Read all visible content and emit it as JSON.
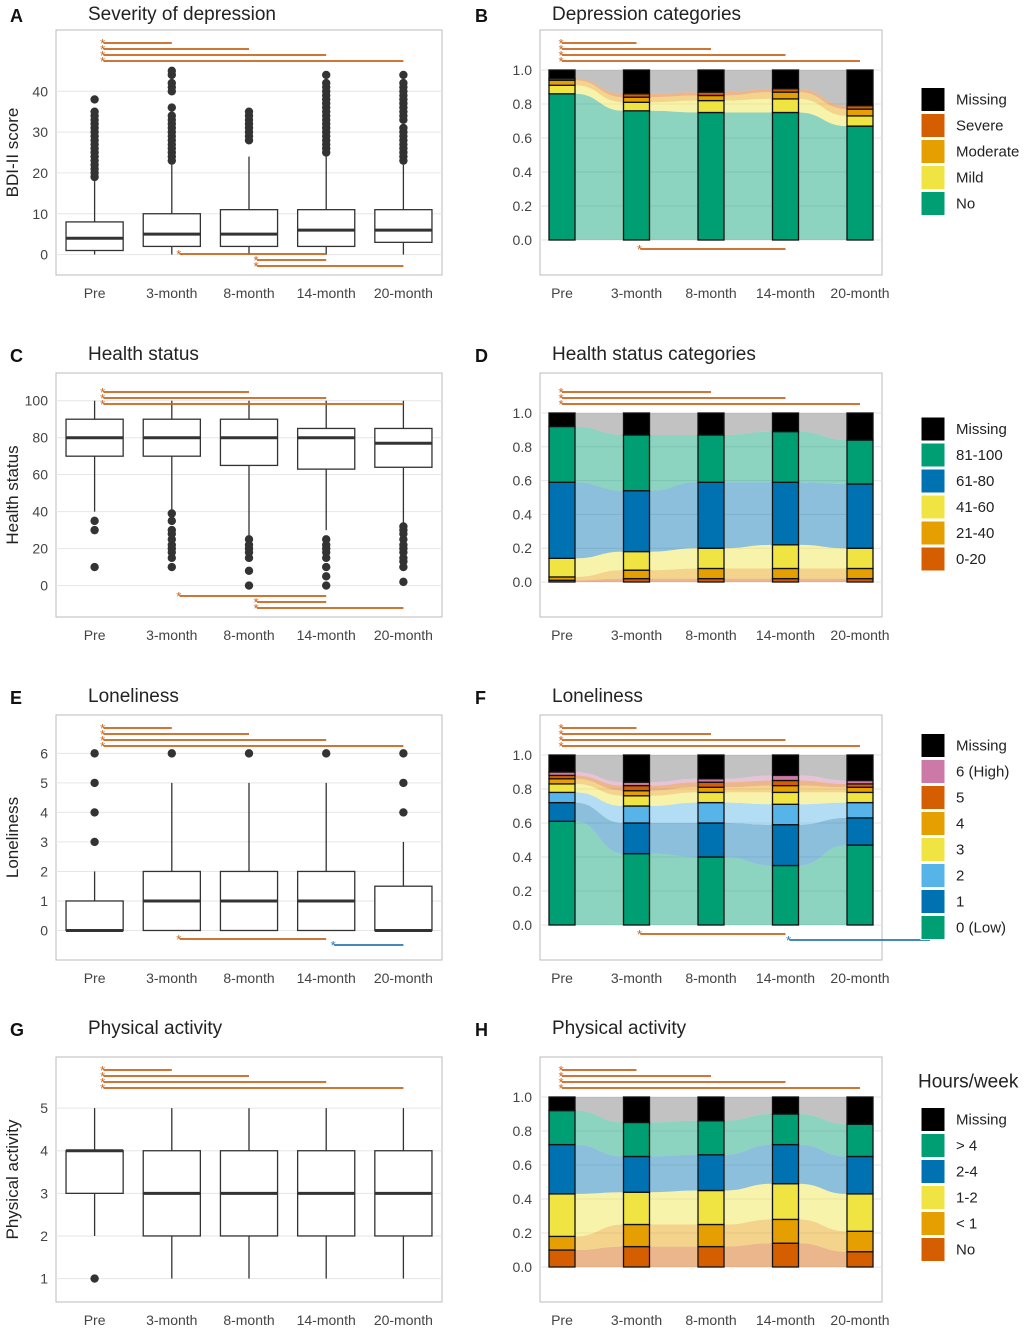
{
  "colors": {
    "sig_orange": "#c8621a",
    "sig_blue": "#2a78b6",
    "missing": "#000000",
    "grid": "#e6e6e6",
    "frame": "#bbbbbb"
  },
  "chart_data": [
    {
      "id": "A",
      "type": "box",
      "letter": "A",
      "title": "Severity of depression",
      "ylabel": "BDI-II score",
      "categories": [
        "Pre",
        "3-month",
        "8-month",
        "14-month",
        "20-month"
      ],
      "ylim": [
        -5,
        55
      ],
      "yticks": [
        0,
        10,
        20,
        30,
        40
      ],
      "boxes": [
        {
          "q1": 1,
          "median": 4,
          "q3": 8,
          "lo": 0,
          "hi": 18,
          "outliers": [
            19,
            20,
            21,
            22,
            23,
            24,
            25,
            26,
            27,
            28,
            29,
            30,
            31,
            32,
            33,
            34,
            35,
            38
          ]
        },
        {
          "q1": 2,
          "median": 5,
          "q3": 10,
          "lo": 0,
          "hi": 22,
          "outliers": [
            23,
            24,
            25,
            26,
            27,
            28,
            29,
            30,
            31,
            32,
            33,
            34,
            36,
            40,
            41,
            42,
            44,
            45
          ]
        },
        {
          "q1": 2,
          "median": 5,
          "q3": 11,
          "lo": 0,
          "hi": 24,
          "outliers": [
            28,
            29,
            30,
            31,
            32,
            33,
            34,
            35
          ]
        },
        {
          "q1": 2,
          "median": 6,
          "q3": 11,
          "lo": 0,
          "hi": 24,
          "outliers": [
            25,
            26,
            27,
            28,
            29,
            30,
            31,
            32,
            33,
            34,
            35,
            36,
            37,
            38,
            39,
            40,
            41,
            42,
            44
          ]
        },
        {
          "q1": 3,
          "median": 6,
          "q3": 11,
          "lo": 0,
          "hi": 22,
          "outliers": [
            23,
            24,
            25,
            26,
            27,
            28,
            29,
            30,
            31,
            33,
            34,
            35,
            36,
            37,
            38,
            39,
            40,
            41,
            42,
            44
          ]
        }
      ],
      "sig_top": [
        {
          "from": 0,
          "to": 1
        },
        {
          "from": 0,
          "to": 2
        },
        {
          "from": 0,
          "to": 3
        },
        {
          "from": 0,
          "to": 4
        }
      ],
      "sig_bottom": [
        {
          "from": 1,
          "to": 3,
          "color": "orange"
        },
        {
          "from": 2,
          "to": 3,
          "color": "orange"
        },
        {
          "from": 2,
          "to": 4,
          "color": "orange"
        }
      ]
    },
    {
      "id": "B",
      "type": "stacked_bar_alluvial",
      "letter": "B",
      "title": "Depression categories",
      "categories": [
        "Pre",
        "3-month",
        "8-month",
        "14-month",
        "20-month"
      ],
      "yticks": [
        0.0,
        0.2,
        0.4,
        0.6,
        0.8,
        1.0
      ],
      "levels": [
        "No",
        "Mild",
        "Moderate",
        "Severe",
        "Missing"
      ],
      "level_colors": [
        "#009e73",
        "#f0e442",
        "#e69f00",
        "#d55e00",
        "#000000"
      ],
      "values": [
        [
          0.86,
          0.05,
          0.03,
          0.01,
          0.05
        ],
        [
          0.76,
          0.05,
          0.03,
          0.02,
          0.14
        ],
        [
          0.75,
          0.07,
          0.03,
          0.02,
          0.13
        ],
        [
          0.75,
          0.08,
          0.04,
          0.02,
          0.11
        ],
        [
          0.67,
          0.06,
          0.04,
          0.02,
          0.21
        ]
      ],
      "legend": {
        "title": "",
        "labels": [
          "Missing",
          "Severe",
          "Moderate",
          "Mild",
          "No"
        ]
      },
      "sig_top": [
        {
          "from": 0,
          "to": 1
        },
        {
          "from": 0,
          "to": 2
        },
        {
          "from": 0,
          "to": 3
        },
        {
          "from": 0,
          "to": 4
        }
      ],
      "sig_bottom": [
        {
          "from": 1,
          "to": 3,
          "color": "orange"
        }
      ]
    },
    {
      "id": "C",
      "type": "box",
      "letter": "C",
      "title": "Health status",
      "ylabel": "Health status",
      "categories": [
        "Pre",
        "3-month",
        "8-month",
        "14-month",
        "20-month"
      ],
      "ylim": [
        -17,
        115
      ],
      "yticks": [
        0,
        20,
        40,
        60,
        80,
        100
      ],
      "boxes": [
        {
          "q1": 70,
          "median": 80,
          "q3": 90,
          "lo": 40,
          "hi": 100,
          "outliers": [
            10,
            30,
            35
          ]
        },
        {
          "q1": 70,
          "median": 80,
          "q3": 90,
          "lo": 40,
          "hi": 100,
          "outliers": [
            10,
            15,
            18,
            20,
            22,
            25,
            28,
            30,
            35,
            39
          ]
        },
        {
          "q1": 65,
          "median": 80,
          "q3": 90,
          "lo": 27,
          "hi": 100,
          "outliers": [
            0,
            8,
            15,
            18,
            20,
            22,
            25
          ]
        },
        {
          "q1": 63,
          "median": 80,
          "q3": 85,
          "lo": 30,
          "hi": 100,
          "outliers": [
            0,
            5,
            10,
            15,
            18,
            20,
            22,
            25
          ]
        },
        {
          "q1": 64,
          "median": 77,
          "q3": 85,
          "lo": 33,
          "hi": 100,
          "outliers": [
            2,
            10,
            13,
            15,
            18,
            20,
            22,
            25,
            28,
            30,
            32
          ]
        }
      ],
      "sig_top": [
        {
          "from": 0,
          "to": 2
        },
        {
          "from": 0,
          "to": 3
        },
        {
          "from": 0,
          "to": 4
        }
      ],
      "sig_bottom": [
        {
          "from": 1,
          "to": 3,
          "color": "orange"
        },
        {
          "from": 2,
          "to": 3,
          "color": "orange"
        },
        {
          "from": 2,
          "to": 4,
          "color": "orange"
        }
      ]
    },
    {
      "id": "D",
      "type": "stacked_bar_alluvial",
      "letter": "D",
      "title": "Health status categories",
      "categories": [
        "Pre",
        "3-month",
        "8-month",
        "14-month",
        "20-month"
      ],
      "yticks": [
        0.0,
        0.2,
        0.4,
        0.6,
        0.8,
        1.0
      ],
      "levels": [
        "0-20",
        "21-40",
        "41-60",
        "61-80",
        "81-100",
        "Missing"
      ],
      "level_colors": [
        "#d55e00",
        "#e69f00",
        "#f0e442",
        "#0072b2",
        "#009e73",
        "#000000"
      ],
      "values": [
        [
          0.01,
          0.02,
          0.11,
          0.45,
          0.33,
          0.08
        ],
        [
          0.02,
          0.05,
          0.11,
          0.36,
          0.33,
          0.13
        ],
        [
          0.02,
          0.06,
          0.12,
          0.39,
          0.28,
          0.13
        ],
        [
          0.02,
          0.06,
          0.14,
          0.37,
          0.3,
          0.11
        ],
        [
          0.02,
          0.06,
          0.12,
          0.38,
          0.26,
          0.16
        ]
      ],
      "legend": {
        "title": "",
        "labels": [
          "Missing",
          "81-100",
          "61-80",
          "41-60",
          "21-40",
          "0-20"
        ]
      },
      "sig_top": [
        {
          "from": 0,
          "to": 2
        },
        {
          "from": 0,
          "to": 3
        },
        {
          "from": 0,
          "to": 4
        }
      ],
      "sig_bottom": []
    },
    {
      "id": "E",
      "type": "box",
      "letter": "E",
      "title": "Loneliness",
      "ylabel": "Loneliness",
      "categories": [
        "Pre",
        "3-month",
        "8-month",
        "14-month",
        "20-month"
      ],
      "ylim": [
        -1,
        7.3
      ],
      "yticks": [
        0,
        1,
        2,
        3,
        4,
        5,
        6
      ],
      "boxes": [
        {
          "q1": 0,
          "median": 0,
          "q3": 1,
          "lo": 0,
          "hi": 2,
          "outliers": [
            3,
            4,
            5,
            6
          ]
        },
        {
          "q1": 0,
          "median": 1,
          "q3": 2,
          "lo": 0,
          "hi": 5,
          "outliers": [
            6
          ]
        },
        {
          "q1": 0,
          "median": 1,
          "q3": 2,
          "lo": 0,
          "hi": 5,
          "outliers": [
            6
          ]
        },
        {
          "q1": 0,
          "median": 1,
          "q3": 2,
          "lo": 0,
          "hi": 5,
          "outliers": [
            6
          ]
        },
        {
          "q1": 0,
          "median": 0,
          "q3": 1.5,
          "lo": 0,
          "hi": 3,
          "outliers": [
            4,
            5,
            6
          ]
        }
      ],
      "sig_top": [
        {
          "from": 0,
          "to": 1
        },
        {
          "from": 0,
          "to": 2
        },
        {
          "from": 0,
          "to": 3
        },
        {
          "from": 0,
          "to": 4
        }
      ],
      "sig_bottom": [
        {
          "from": 1,
          "to": 3,
          "color": "orange"
        },
        {
          "from": 3,
          "to": 4,
          "color": "blue"
        }
      ]
    },
    {
      "id": "F",
      "type": "stacked_bar_alluvial",
      "letter": "F",
      "title": "Loneliness",
      "categories": [
        "Pre",
        "3-month",
        "8-month",
        "14-month",
        "20-month"
      ],
      "yticks": [
        0.0,
        0.2,
        0.4,
        0.6,
        0.8,
        1.0
      ],
      "levels": [
        "0 (Low)",
        "1",
        "2",
        "3",
        "4",
        "5",
        "6 (High)",
        "Missing"
      ],
      "level_colors": [
        "#009e73",
        "#0072b2",
        "#56b4e9",
        "#f0e442",
        "#e69f00",
        "#d55e00",
        "#cc79a7",
        "#000000"
      ],
      "values": [
        [
          0.61,
          0.11,
          0.06,
          0.05,
          0.03,
          0.02,
          0.02,
          0.1
        ],
        [
          0.42,
          0.18,
          0.1,
          0.06,
          0.03,
          0.03,
          0.02,
          0.16
        ],
        [
          0.4,
          0.2,
          0.12,
          0.06,
          0.03,
          0.03,
          0.02,
          0.14
        ],
        [
          0.35,
          0.24,
          0.12,
          0.07,
          0.04,
          0.03,
          0.03,
          0.12
        ],
        [
          0.47,
          0.16,
          0.09,
          0.06,
          0.03,
          0.02,
          0.02,
          0.15
        ]
      ],
      "legend": {
        "title": "",
        "labels": [
          "Missing",
          "6 (High)",
          "5",
          "4",
          "3",
          "2",
          "1",
          "0 (Low)"
        ]
      },
      "sig_top": [
        {
          "from": 0,
          "to": 1
        },
        {
          "from": 0,
          "to": 2
        },
        {
          "from": 0,
          "to": 3
        },
        {
          "from": 0,
          "to": 4
        }
      ],
      "sig_bottom": [
        {
          "from": 1,
          "to": 3,
          "color": "orange"
        },
        {
          "from": 3,
          "to": 4,
          "color": "blue"
        }
      ]
    },
    {
      "id": "G",
      "type": "box",
      "letter": "G",
      "title": "Physical activity",
      "ylabel": "Physical activity",
      "categories": [
        "Pre",
        "3-month",
        "8-month",
        "14-month",
        "20-month"
      ],
      "ylim": [
        0.45,
        6.2
      ],
      "yticks": [
        1,
        2,
        3,
        4,
        5
      ],
      "boxes": [
        {
          "q1": 3,
          "median": 4,
          "q3": 4,
          "lo": 2,
          "hi": 5,
          "outliers": [
            1
          ]
        },
        {
          "q1": 2,
          "median": 3,
          "q3": 4,
          "lo": 1,
          "hi": 5,
          "outliers": []
        },
        {
          "q1": 2,
          "median": 3,
          "q3": 4,
          "lo": 1,
          "hi": 5,
          "outliers": []
        },
        {
          "q1": 2,
          "median": 3,
          "q3": 4,
          "lo": 1,
          "hi": 5,
          "outliers": []
        },
        {
          "q1": 2,
          "median": 3,
          "q3": 4,
          "lo": 1,
          "hi": 5,
          "outliers": []
        }
      ],
      "sig_top": [
        {
          "from": 0,
          "to": 1
        },
        {
          "from": 0,
          "to": 2
        },
        {
          "from": 0,
          "to": 3
        },
        {
          "from": 0,
          "to": 4
        }
      ],
      "sig_bottom": []
    },
    {
      "id": "H",
      "type": "stacked_bar_alluvial",
      "letter": "H",
      "title": "Physical activity",
      "categories": [
        "Pre",
        "3-month",
        "8-month",
        "14-month",
        "20-month"
      ],
      "yticks": [
        0.0,
        0.2,
        0.4,
        0.6,
        0.8,
        1.0
      ],
      "levels": [
        "No",
        "< 1",
        "1-2",
        "2-4",
        "> 4",
        "Missing"
      ],
      "level_colors": [
        "#d55e00",
        "#e69f00",
        "#f0e442",
        "#0072b2",
        "#009e73",
        "#000000"
      ],
      "values": [
        [
          0.1,
          0.08,
          0.25,
          0.29,
          0.2,
          0.08
        ],
        [
          0.12,
          0.13,
          0.19,
          0.21,
          0.2,
          0.15
        ],
        [
          0.12,
          0.13,
          0.2,
          0.21,
          0.2,
          0.14
        ],
        [
          0.14,
          0.14,
          0.21,
          0.23,
          0.18,
          0.1
        ],
        [
          0.09,
          0.12,
          0.22,
          0.22,
          0.19,
          0.16
        ]
      ],
      "legend": {
        "title": "Hours/week",
        "labels": [
          "Missing",
          "> 4",
          "2-4",
          "1-2",
          "< 1",
          "No"
        ]
      },
      "sig_top": [
        {
          "from": 0,
          "to": 1
        },
        {
          "from": 0,
          "to": 2
        },
        {
          "from": 0,
          "to": 3
        },
        {
          "from": 0,
          "to": 4
        }
      ],
      "sig_bottom": []
    }
  ]
}
